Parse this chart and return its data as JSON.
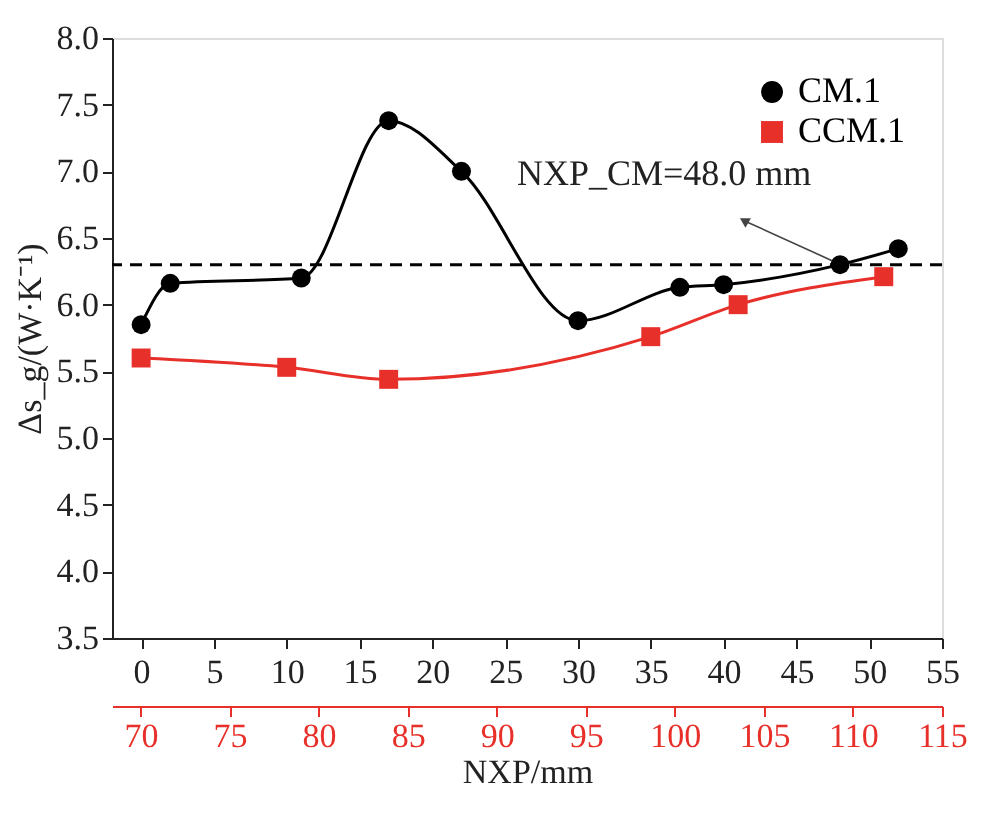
{
  "chart_data": {
    "type": "line",
    "xlabel": "NXP/mm",
    "ylabel": "Δs_g/(W·K⁻¹)",
    "x": [
      0,
      2,
      11,
      17,
      22,
      30,
      37,
      40,
      48,
      52
    ],
    "series": [
      {
        "name": "CM.1",
        "color": "#000000",
        "marker": "circle",
        "values": [
          5.85,
          6.16,
          6.2,
          7.38,
          7.0,
          5.88,
          6.13,
          6.15,
          6.3,
          6.42
        ]
      },
      {
        "name": "CCM.1",
        "color": "#e8302a",
        "marker": "square",
        "x": [
          0,
          10,
          17,
          35,
          41,
          51
        ],
        "values": [
          5.6,
          5.53,
          5.44,
          5.76,
          6.0,
          6.21
        ]
      }
    ],
    "xlim": [
      -2,
      55
    ],
    "xticks": [
      0,
      5,
      10,
      15,
      20,
      25,
      30,
      35,
      40,
      45,
      50,
      55
    ],
    "x2lim": [
      68.4,
      115
    ],
    "x2ticks": [
      70,
      75,
      80,
      85,
      90,
      95,
      100,
      105,
      110,
      115
    ],
    "ylim": [
      3.5,
      8.0
    ],
    "yticks": [
      3.5,
      {
        "value": 4,
        "label": "4.0"
      },
      4.5,
      {
        "value": 5,
        "label": "5.0"
      },
      5.5,
      {
        "value": 6,
        "label": "6.0"
      },
      6.5,
      {
        "value": 7,
        "label": "7.0"
      },
      7.5,
      {
        "value": 8,
        "label": "8.0"
      }
    ],
    "ref_lines": [
      {
        "axis": "y",
        "value": 6.3,
        "line_style": "dashed",
        "color": "#000000"
      }
    ],
    "annotations": [
      {
        "text": "NXP_CM=48.0 mm",
        "x": 48,
        "y": 6.3
      }
    ],
    "legend": "top right",
    "grid": false,
    "line_style": "solid"
  }
}
